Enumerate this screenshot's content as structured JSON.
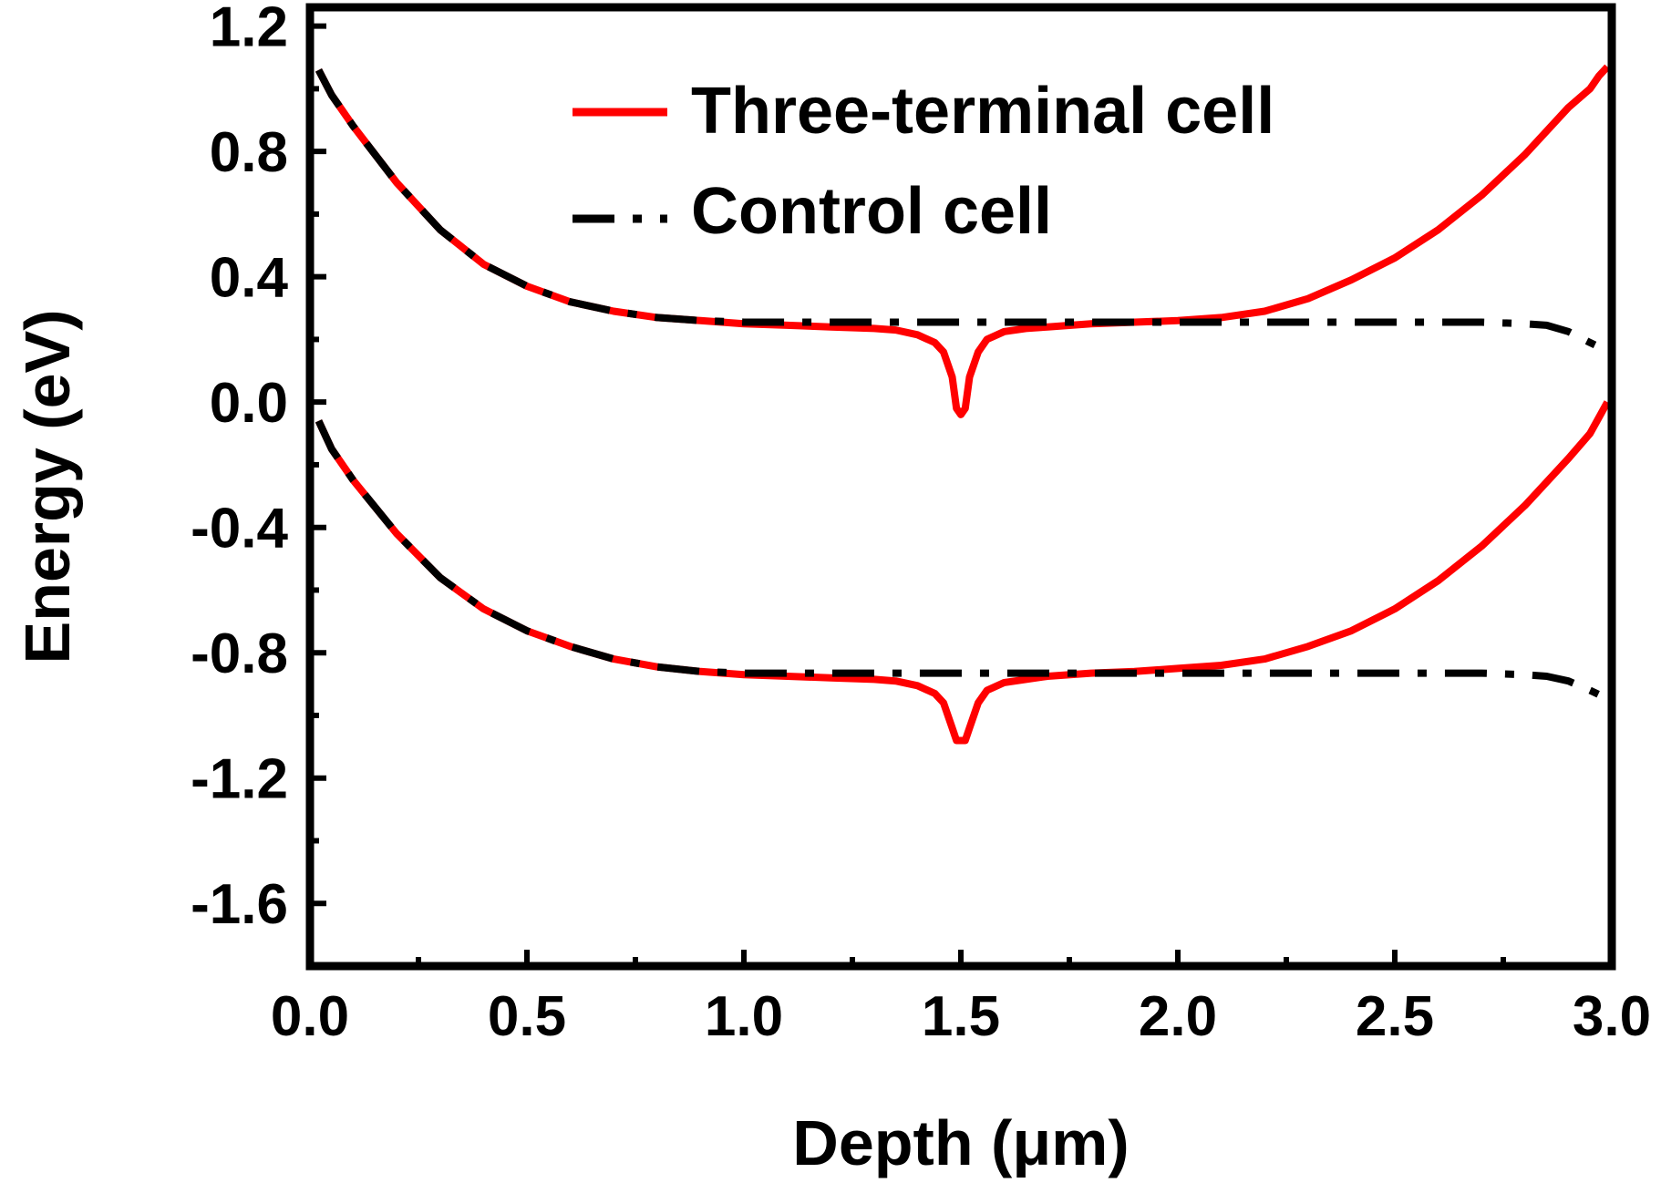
{
  "chart_data": {
    "type": "line",
    "xlabel": "Depth (μm)",
    "ylabel": "Energy (eV)",
    "xlim": [
      0.0,
      3.0
    ],
    "ylim": [
      -1.8,
      1.26
    ],
    "x_ticks": [
      "0.0",
      "0.5",
      "1.0",
      "1.5",
      "2.0",
      "2.5",
      "3.0"
    ],
    "y_ticks": [
      "1.2",
      "0.8",
      "0.4",
      "0.0",
      "-0.4",
      "-0.8",
      "-1.2",
      "-1.6"
    ],
    "legend_position": "top-right",
    "grid": false,
    "series": [
      {
        "name": "Three-terminal cell",
        "color": "#ff0000",
        "style": "solid",
        "band": "conduction",
        "x": [
          0.02,
          0.05,
          0.1,
          0.2,
          0.3,
          0.4,
          0.5,
          0.6,
          0.7,
          0.8,
          0.9,
          1.0,
          1.1,
          1.2,
          1.3,
          1.35,
          1.4,
          1.44,
          1.46,
          1.48,
          1.49,
          1.5,
          1.51,
          1.52,
          1.54,
          1.56,
          1.6,
          1.65,
          1.7,
          1.8,
          1.9,
          2.0,
          2.1,
          2.2,
          2.3,
          2.4,
          2.5,
          2.6,
          2.7,
          2.8,
          2.9,
          2.95,
          2.97,
          2.99
        ],
        "y": [
          1.06,
          0.98,
          0.88,
          0.7,
          0.55,
          0.44,
          0.37,
          0.32,
          0.29,
          0.27,
          0.26,
          0.25,
          0.245,
          0.24,
          0.235,
          0.23,
          0.215,
          0.19,
          0.16,
          0.08,
          -0.02,
          -0.04,
          -0.02,
          0.08,
          0.16,
          0.2,
          0.225,
          0.235,
          0.24,
          0.25,
          0.255,
          0.26,
          0.27,
          0.29,
          0.33,
          0.39,
          0.46,
          0.55,
          0.66,
          0.79,
          0.94,
          1.0,
          1.04,
          1.07
        ]
      },
      {
        "name": "Three-terminal cell",
        "color": "#ff0000",
        "style": "solid",
        "band": "valence",
        "x": [
          0.02,
          0.05,
          0.1,
          0.2,
          0.3,
          0.4,
          0.5,
          0.6,
          0.7,
          0.8,
          0.9,
          1.0,
          1.1,
          1.2,
          1.3,
          1.35,
          1.4,
          1.44,
          1.46,
          1.48,
          1.49,
          1.5,
          1.51,
          1.52,
          1.54,
          1.56,
          1.6,
          1.65,
          1.7,
          1.8,
          1.9,
          2.0,
          2.1,
          2.2,
          2.3,
          2.4,
          2.5,
          2.6,
          2.7,
          2.8,
          2.9,
          2.95,
          2.97,
          2.99
        ],
        "y": [
          -0.06,
          -0.15,
          -0.25,
          -0.42,
          -0.56,
          -0.66,
          -0.73,
          -0.78,
          -0.82,
          -0.845,
          -0.86,
          -0.87,
          -0.875,
          -0.88,
          -0.885,
          -0.89,
          -0.905,
          -0.93,
          -0.96,
          -1.04,
          -1.08,
          -1.08,
          -1.08,
          -1.04,
          -0.96,
          -0.92,
          -0.895,
          -0.885,
          -0.875,
          -0.865,
          -0.86,
          -0.85,
          -0.84,
          -0.82,
          -0.78,
          -0.73,
          -0.66,
          -0.57,
          -0.46,
          -0.33,
          -0.18,
          -0.1,
          -0.05,
          0.0
        ]
      },
      {
        "name": "Control cell",
        "color": "#000000",
        "style": "dash-dot",
        "band": "conduction",
        "x": [
          0.02,
          0.05,
          0.1,
          0.2,
          0.3,
          0.4,
          0.5,
          0.6,
          0.7,
          0.8,
          0.9,
          1.0,
          1.2,
          1.4,
          1.6,
          1.8,
          2.0,
          2.2,
          2.4,
          2.6,
          2.7,
          2.8,
          2.85,
          2.9,
          2.95,
          2.98
        ],
        "y": [
          1.06,
          0.98,
          0.88,
          0.7,
          0.55,
          0.44,
          0.37,
          0.32,
          0.29,
          0.27,
          0.26,
          0.255,
          0.255,
          0.255,
          0.255,
          0.255,
          0.255,
          0.255,
          0.255,
          0.255,
          0.255,
          0.25,
          0.245,
          0.225,
          0.19,
          0.17
        ]
      },
      {
        "name": "Control cell",
        "color": "#000000",
        "style": "dash-dot",
        "band": "valence",
        "x": [
          0.02,
          0.05,
          0.1,
          0.2,
          0.3,
          0.4,
          0.5,
          0.6,
          0.7,
          0.8,
          0.9,
          1.0,
          1.2,
          1.4,
          1.6,
          1.8,
          2.0,
          2.2,
          2.4,
          2.6,
          2.7,
          2.8,
          2.85,
          2.9,
          2.95,
          2.98
        ],
        "y": [
          -0.06,
          -0.15,
          -0.25,
          -0.42,
          -0.56,
          -0.66,
          -0.73,
          -0.78,
          -0.82,
          -0.845,
          -0.86,
          -0.865,
          -0.865,
          -0.865,
          -0.865,
          -0.865,
          -0.865,
          -0.865,
          -0.865,
          -0.865,
          -0.865,
          -0.87,
          -0.875,
          -0.89,
          -0.92,
          -0.94
        ]
      }
    ],
    "legend": [
      {
        "label": "Three-terminal cell",
        "color": "#ff0000",
        "style": "solid"
      },
      {
        "label": "Control cell",
        "color": "#000000",
        "style": "dash-dot"
      }
    ]
  }
}
